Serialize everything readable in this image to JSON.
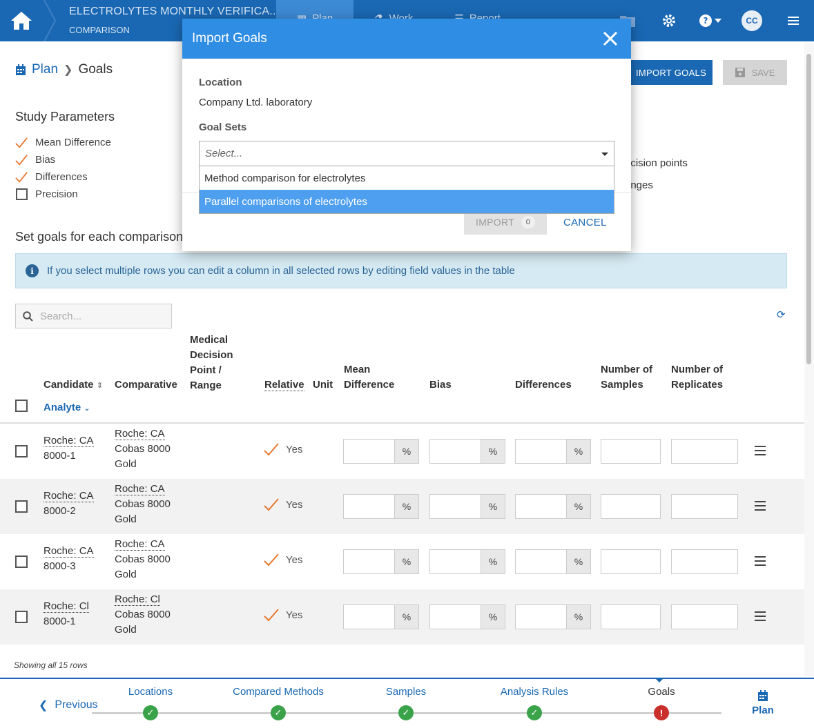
{
  "topbar": {
    "title": "ELECTROLYTES MONTHLY VERIFICA...",
    "subtitle": "COMPARISON",
    "tabs": [
      {
        "label": "Plan",
        "icon": "calendar-icon",
        "active": true
      },
      {
        "label": "Work",
        "icon": "flask-icon",
        "active": false
      },
      {
        "label": "Report",
        "icon": "chart-icon",
        "active": false
      }
    ],
    "avatar": "CC"
  },
  "breadcrumb": {
    "plan": "Plan",
    "current": "Goals"
  },
  "actions": {
    "import_goals": "IMPORT GOALS",
    "save": "SAVE"
  },
  "study_parameters": {
    "title": "Study Parameters",
    "items": [
      {
        "label": "Mean Difference",
        "checked": true
      },
      {
        "label": "Bias",
        "checked": true
      },
      {
        "label": "Differences",
        "checked": true
      },
      {
        "label": "Precision",
        "checked": false
      }
    ],
    "right_options": [
      "ecision points",
      "anges"
    ]
  },
  "set_goals_title": "Set goals for each comparison",
  "info_text": "If you select multiple rows you can edit a column in all selected rows by editing field values in the table",
  "search_placeholder": "Search...",
  "table": {
    "headers": {
      "candidate": "Candidate",
      "analyte": "Analyte",
      "comparative": "Comparative",
      "medical_line1": "Medical",
      "medical_line2": "Decision",
      "medical_line3": "Point /",
      "medical_line4": "Range",
      "relative": "Relative",
      "unit": "Unit",
      "mean_diff_line1": "Mean",
      "mean_diff_line2": "Difference",
      "bias": "Bias",
      "differences": "Differences",
      "num_samples_line1": "Number of",
      "num_samples_line2": "Samples",
      "num_reps_line1": "Number of",
      "num_reps_line2": "Replicates"
    },
    "unit_symbol": "%",
    "rows": [
      {
        "cand_l1": "Roche: CA",
        "cand_l2": "8000-1",
        "comp_l1": "Roche: CA",
        "comp_l2": "Cobas 8000",
        "comp_l3": "Gold",
        "relative": "Yes"
      },
      {
        "cand_l1": "Roche: CA",
        "cand_l2": "8000-2",
        "comp_l1": "Roche: CA",
        "comp_l2": "Cobas 8000",
        "comp_l3": "Gold",
        "relative": "Yes"
      },
      {
        "cand_l1": "Roche: CA",
        "cand_l2": "8000-3",
        "comp_l1": "Roche: CA",
        "comp_l2": "Cobas 8000",
        "comp_l3": "Gold",
        "relative": "Yes"
      },
      {
        "cand_l1": "Roche: Cl",
        "cand_l2": "8000-1",
        "comp_l1": "Roche: Cl",
        "comp_l2": "Cobas 8000",
        "comp_l3": "Gold",
        "relative": "Yes"
      }
    ],
    "footer": "Showing all 15 rows"
  },
  "bottom_nav": {
    "previous": "Previous",
    "steps": [
      {
        "label": "Locations",
        "status": "ok"
      },
      {
        "label": "Compared Methods",
        "status": "ok"
      },
      {
        "label": "Samples",
        "status": "ok"
      },
      {
        "label": "Analysis Rules",
        "status": "ok"
      },
      {
        "label": "Goals",
        "status": "error"
      }
    ],
    "plan": "Plan"
  },
  "modal": {
    "title": "Import Goals",
    "location_label": "Location",
    "location_value": "Company Ltd. laboratory",
    "goal_sets_label": "Goal Sets",
    "select_placeholder": "Select...",
    "options": [
      {
        "label": "Method comparison for electrolytes",
        "highlighted": false
      },
      {
        "label": "Parallel comparisons of electrolytes",
        "highlighted": true
      }
    ],
    "import_label": "IMPORT",
    "import_count": "0",
    "cancel_label": "CANCEL"
  },
  "colors": {
    "primary": "#1a68b3",
    "modal_header": "#2f8de4",
    "check_orange": "#e8772e",
    "ok_green": "#3aa34a",
    "error_red": "#c9302c"
  }
}
